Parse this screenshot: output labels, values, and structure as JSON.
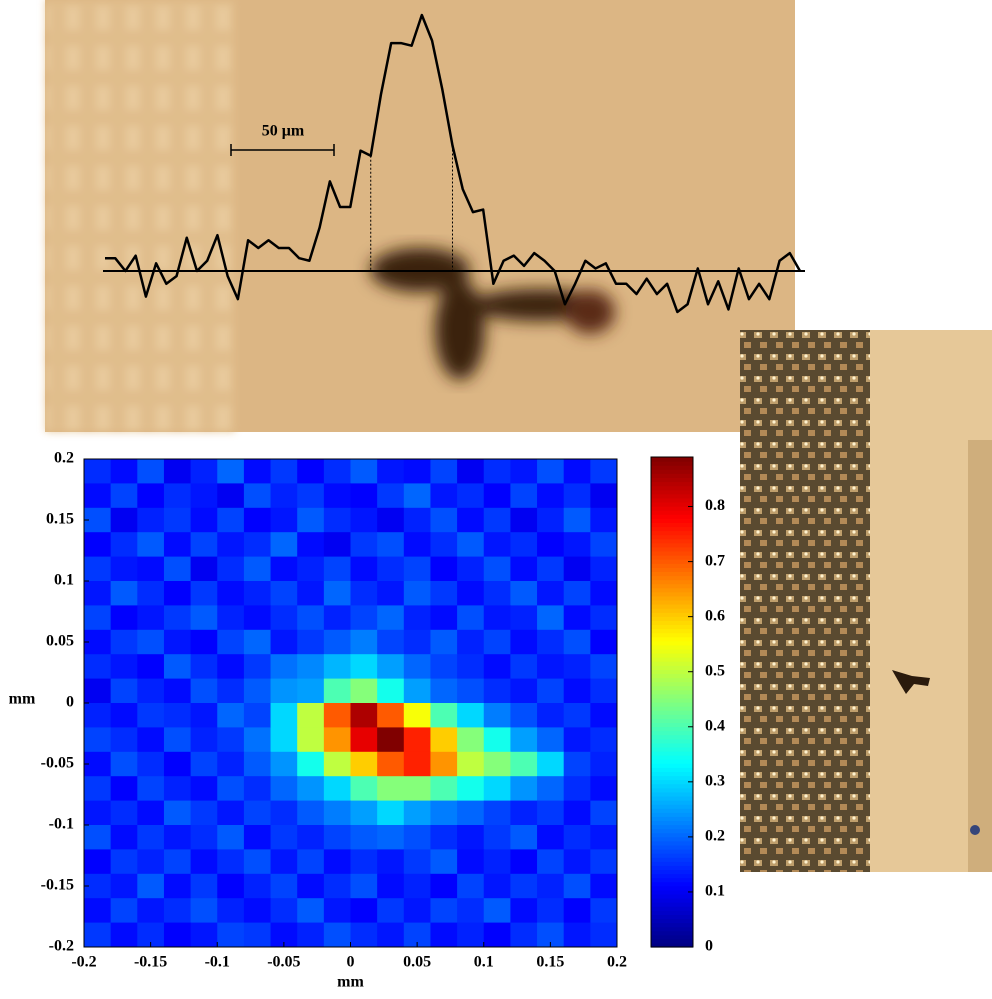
{
  "chart_data": [
    {
      "type": "line",
      "annotation": "50 μm",
      "values": [
        5,
        5,
        0,
        6,
        -10,
        3,
        -5,
        -2,
        13,
        0,
        4,
        14,
        -2,
        -11,
        12,
        9,
        12,
        9,
        9,
        5,
        4,
        17,
        35,
        25,
        25,
        47,
        45,
        69,
        89,
        89,
        88,
        100,
        90,
        71,
        49,
        32,
        23,
        24,
        -5,
        4,
        6,
        2,
        7,
        4,
        0,
        -13,
        -5,
        4,
        1,
        3,
        -5,
        -5,
        -9,
        -3,
        -9,
        -5,
        -16,
        -13,
        1,
        -13,
        -4,
        -15,
        1,
        -11,
        -5,
        -11,
        4,
        7,
        0
      ],
      "color": "#000000"
    },
    {
      "type": "heatmap",
      "x_label": "mm",
      "y_label": "mm",
      "colormap": "jet",
      "xlim": [
        -0.2,
        0.2
      ],
      "ylim": [
        -0.2,
        0.2
      ],
      "xticks": [
        -0.2,
        -0.15,
        -0.1,
        -0.05,
        0,
        0.05,
        0.1,
        0.15,
        0.2
      ],
      "yticks": [
        -0.2,
        -0.15,
        -0.1,
        -0.05,
        0,
        0.05,
        0.1,
        0.15,
        0.2
      ],
      "clim": [
        0,
        0.89
      ],
      "cticks": [
        0,
        0.1,
        0.2,
        0.3,
        0.4,
        0.5,
        0.6,
        0.7,
        0.8
      ],
      "z": [
        [
          0.15,
          0.12,
          0.18,
          0.1,
          0.14,
          0.2,
          0.12,
          0.16,
          0.11,
          0.15,
          0.19,
          0.13,
          0.12,
          0.17,
          0.1,
          0.15,
          0.13,
          0.18,
          0.12,
          0.16
        ],
        [
          0.12,
          0.17,
          0.11,
          0.15,
          0.13,
          0.1,
          0.18,
          0.14,
          0.16,
          0.12,
          0.11,
          0.16,
          0.2,
          0.13,
          0.15,
          0.11,
          0.17,
          0.12,
          0.15,
          0.1
        ],
        [
          0.18,
          0.1,
          0.14,
          0.16,
          0.12,
          0.17,
          0.11,
          0.13,
          0.19,
          0.15,
          0.13,
          0.1,
          0.14,
          0.18,
          0.12,
          0.16,
          0.1,
          0.14,
          0.19,
          0.13
        ],
        [
          0.11,
          0.15,
          0.19,
          0.12,
          0.17,
          0.13,
          0.15,
          0.2,
          0.12,
          0.1,
          0.16,
          0.18,
          0.12,
          0.15,
          0.19,
          0.13,
          0.15,
          0.11,
          0.13,
          0.17
        ],
        [
          0.16,
          0.13,
          0.12,
          0.18,
          0.1,
          0.15,
          0.19,
          0.12,
          0.14,
          0.17,
          0.12,
          0.15,
          0.17,
          0.11,
          0.14,
          0.18,
          0.12,
          0.16,
          0.1,
          0.14
        ],
        [
          0.13,
          0.19,
          0.15,
          0.11,
          0.16,
          0.12,
          0.14,
          0.17,
          0.13,
          0.2,
          0.15,
          0.13,
          0.19,
          0.16,
          0.12,
          0.15,
          0.19,
          0.13,
          0.17,
          0.12
        ],
        [
          0.17,
          0.11,
          0.13,
          0.16,
          0.19,
          0.14,
          0.12,
          0.15,
          0.18,
          0.14,
          0.17,
          0.2,
          0.14,
          0.12,
          0.18,
          0.13,
          0.14,
          0.2,
          0.12,
          0.15
        ],
        [
          0.12,
          0.16,
          0.18,
          0.13,
          0.11,
          0.17,
          0.2,
          0.13,
          0.16,
          0.19,
          0.22,
          0.17,
          0.15,
          0.19,
          0.14,
          0.17,
          0.12,
          0.15,
          0.18,
          0.11
        ],
        [
          0.15,
          0.13,
          0.11,
          0.19,
          0.15,
          0.12,
          0.16,
          0.21,
          0.23,
          0.27,
          0.3,
          0.25,
          0.2,
          0.17,
          0.15,
          0.12,
          0.16,
          0.13,
          0.14,
          0.17
        ],
        [
          0.1,
          0.17,
          0.14,
          0.12,
          0.18,
          0.15,
          0.19,
          0.24,
          0.25,
          0.4,
          0.45,
          0.35,
          0.25,
          0.2,
          0.18,
          0.15,
          0.13,
          0.17,
          0.12,
          0.15
        ],
        [
          0.14,
          0.12,
          0.16,
          0.15,
          0.13,
          0.2,
          0.17,
          0.3,
          0.5,
          0.7,
          0.85,
          0.7,
          0.55,
          0.4,
          0.3,
          0.22,
          0.18,
          0.14,
          0.16,
          0.12
        ],
        [
          0.17,
          0.15,
          0.12,
          0.18,
          0.14,
          0.16,
          0.21,
          0.3,
          0.5,
          0.65,
          0.8,
          0.9,
          0.75,
          0.6,
          0.45,
          0.35,
          0.25,
          0.2,
          0.13,
          0.15
        ],
        [
          0.12,
          0.18,
          0.15,
          0.11,
          0.17,
          0.14,
          0.19,
          0.24,
          0.35,
          0.5,
          0.6,
          0.7,
          0.75,
          0.65,
          0.5,
          0.45,
          0.4,
          0.3,
          0.17,
          0.14
        ],
        [
          0.16,
          0.11,
          0.17,
          0.14,
          0.12,
          0.18,
          0.15,
          0.2,
          0.24,
          0.3,
          0.4,
          0.45,
          0.45,
          0.4,
          0.35,
          0.3,
          0.24,
          0.2,
          0.15,
          0.12
        ],
        [
          0.13,
          0.15,
          0.12,
          0.19,
          0.16,
          0.13,
          0.17,
          0.15,
          0.19,
          0.22,
          0.25,
          0.3,
          0.25,
          0.22,
          0.2,
          0.17,
          0.14,
          0.16,
          0.12,
          0.17
        ],
        [
          0.18,
          0.12,
          0.16,
          0.13,
          0.15,
          0.19,
          0.12,
          0.16,
          0.14,
          0.17,
          0.19,
          0.2,
          0.18,
          0.15,
          0.13,
          0.16,
          0.19,
          0.12,
          0.15,
          0.13
        ],
        [
          0.11,
          0.16,
          0.14,
          0.17,
          0.12,
          0.15,
          0.18,
          0.13,
          0.17,
          0.12,
          0.15,
          0.13,
          0.16,
          0.19,
          0.12,
          0.14,
          0.11,
          0.17,
          0.13,
          0.16
        ],
        [
          0.15,
          0.13,
          0.19,
          0.12,
          0.16,
          0.11,
          0.14,
          0.17,
          0.12,
          0.15,
          0.18,
          0.12,
          0.14,
          0.11,
          0.17,
          0.13,
          0.16,
          0.14,
          0.18,
          0.12
        ],
        [
          0.12,
          0.17,
          0.13,
          0.15,
          0.18,
          0.14,
          0.12,
          0.15,
          0.19,
          0.13,
          0.11,
          0.16,
          0.13,
          0.17,
          0.15,
          0.19,
          0.12,
          0.15,
          0.11,
          0.16
        ],
        [
          0.16,
          0.12,
          0.15,
          0.11,
          0.13,
          0.17,
          0.16,
          0.12,
          0.14,
          0.18,
          0.15,
          0.13,
          0.17,
          0.12,
          0.14,
          0.11,
          0.15,
          0.18,
          0.13,
          0.15
        ]
      ]
    }
  ]
}
